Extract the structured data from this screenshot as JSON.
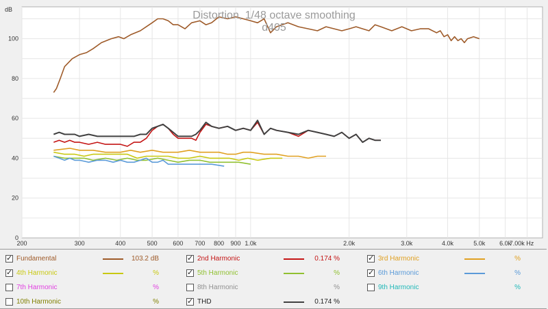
{
  "chart_data": {
    "type": "line",
    "title": "Distortion, 1/48 octave smoothing",
    "subtitle": "d405",
    "ylabel": "dB",
    "xunit": "Hz",
    "xscale": "log",
    "xlim": [
      200,
      7800
    ],
    "ylim": [
      0,
      116
    ],
    "grid": true,
    "yticks": [
      0,
      20,
      40,
      60,
      80,
      100
    ],
    "ytick_labels": [
      "0",
      "20",
      "40",
      "60",
      "80",
      "100"
    ],
    "xticks": [
      200,
      300,
      400,
      500,
      600,
      700,
      800,
      900,
      1000,
      2000,
      3000,
      4000,
      5000,
      6000,
      7000
    ],
    "xtick_labels": [
      "200",
      "300",
      "400",
      "500",
      "600",
      "700",
      "800",
      "900",
      "1.0k",
      "2.0k",
      "3.0k",
      "4.0k",
      "5.0k",
      "6.0k",
      "7.00k Hz"
    ],
    "series": [
      {
        "name": "Fundamental",
        "color": "#9e5a28",
        "x": [
          250,
          255,
          262,
          270,
          285,
          300,
          315,
          330,
          350,
          375,
          395,
          410,
          430,
          460,
          480,
          500,
          520,
          540,
          560,
          580,
          600,
          630,
          660,
          700,
          730,
          760,
          800,
          850,
          900,
          950,
          1000,
          1050,
          1100,
          1150,
          1200,
          1300,
          1400,
          1500,
          1600,
          1700,
          1800,
          1900,
          2000,
          2100,
          2200,
          2300,
          2400,
          2500,
          2700,
          2900,
          3100,
          3300,
          3500,
          3700,
          3800,
          3900,
          4000,
          4100,
          4200,
          4300,
          4400,
          4500,
          4600,
          4800,
          5000
        ],
        "y": [
          73,
          75,
          80,
          86,
          90,
          92,
          93,
          95,
          98,
          100,
          101,
          100,
          102,
          104,
          106,
          108,
          110,
          110,
          109,
          107,
          107,
          105,
          108,
          109,
          107,
          108,
          111,
          110,
          111,
          110,
          109,
          108,
          110,
          103,
          106,
          108,
          106,
          105,
          104,
          106,
          105,
          104,
          105,
          106,
          105,
          104,
          107,
          106,
          104,
          106,
          104,
          105,
          105,
          103,
          104,
          101,
          102,
          99,
          101,
          99,
          100,
          98,
          100,
          101,
          100
        ]
      },
      {
        "name": "2nd Harmonic",
        "color": "#c41414",
        "x": [
          250,
          260,
          270,
          280,
          290,
          300,
          320,
          340,
          360,
          380,
          400,
          420,
          440,
          460,
          480,
          500,
          520,
          540,
          560,
          580,
          600,
          630,
          660,
          680,
          700,
          730,
          760,
          800,
          850,
          900,
          950,
          1000,
          1050,
          1100,
          1150,
          1200,
          1300,
          1400,
          1500,
          1600,
          1700,
          1800,
          1900,
          2000,
          2100,
          2200,
          2300,
          2400,
          2500
        ],
        "y": [
          48,
          49,
          48,
          49,
          48,
          48,
          47,
          48,
          47,
          47,
          47,
          46,
          48,
          48,
          50,
          54,
          56,
          57,
          55,
          52,
          50,
          50,
          50,
          49,
          53,
          57,
          56,
          55,
          56,
          54,
          55,
          54,
          58,
          52,
          55,
          54,
          53,
          51,
          54,
          53,
          52,
          51,
          53,
          50,
          52,
          48,
          50,
          49,
          49
        ]
      },
      {
        "name": "3rd Harmonic",
        "color": "#e0a020",
        "x": [
          250,
          280,
          300,
          330,
          360,
          400,
          430,
          460,
          500,
          540,
          600,
          650,
          700,
          750,
          800,
          850,
          900,
          950,
          1000,
          1100,
          1200,
          1300,
          1400,
          1500,
          1600,
          1700
        ],
        "y": [
          44,
          45,
          44,
          44,
          43,
          43,
          44,
          43,
          44,
          43,
          43,
          44,
          43,
          43,
          43,
          42,
          42,
          43,
          43,
          42,
          42,
          41,
          41,
          40,
          41,
          41
        ]
      },
      {
        "name": "4th Harmonic",
        "color": "#c8c810",
        "x": [
          250,
          270,
          290,
          310,
          330,
          360,
          390,
          420,
          450,
          480,
          520,
          560,
          600,
          650,
          700,
          750,
          800,
          860,
          920,
          980,
          1050,
          1150,
          1250
        ],
        "y": [
          43,
          42,
          42,
          41,
          42,
          42,
          42,
          42,
          40,
          41,
          41,
          41,
          40,
          40,
          41,
          40,
          40,
          40,
          39,
          40,
          39,
          40,
          40
        ]
      },
      {
        "name": "5th Harmonic",
        "color": "#90c030",
        "x": [
          250,
          270,
          290,
          310,
          330,
          360,
          390,
          420,
          450,
          480,
          520,
          560,
          600,
          650,
          700,
          750,
          800,
          860,
          920,
          1000
        ],
        "y": [
          41,
          40,
          40,
          40,
          39,
          40,
          39,
          40,
          39,
          39,
          40,
          39,
          38,
          39,
          39,
          38,
          38,
          38,
          38,
          37
        ]
      },
      {
        "name": "6th Harmonic",
        "color": "#5a9ad8",
        "x": [
          250,
          260,
          270,
          280,
          290,
          300,
          320,
          340,
          360,
          380,
          400,
          420,
          440,
          460,
          480,
          500,
          520,
          540,
          560,
          600,
          640,
          700,
          760,
          830
        ],
        "y": [
          41,
          40,
          39,
          40,
          39,
          39,
          38,
          39,
          39,
          38,
          39,
          38,
          38,
          39,
          40,
          38,
          38,
          39,
          37,
          37,
          37,
          37,
          37,
          36
        ]
      },
      {
        "name": "THD",
        "color": "#404040",
        "x": [
          250,
          260,
          270,
          280,
          290,
          300,
          320,
          340,
          360,
          380,
          400,
          420,
          440,
          460,
          480,
          500,
          520,
          540,
          560,
          580,
          600,
          630,
          660,
          680,
          700,
          730,
          760,
          800,
          850,
          900,
          950,
          1000,
          1050,
          1100,
          1150,
          1200,
          1300,
          1400,
          1500,
          1600,
          1700,
          1800,
          1900,
          2000,
          2100,
          2200,
          2300,
          2400,
          2500
        ],
        "y": [
          52,
          53,
          52,
          52,
          52,
          51,
          52,
          51,
          51,
          51,
          51,
          51,
          51,
          52,
          52,
          55,
          56,
          57,
          55,
          53,
          51,
          51,
          51,
          52,
          54,
          58,
          56,
          55,
          56,
          54,
          55,
          54,
          59,
          52,
          55,
          54,
          53,
          52,
          54,
          53,
          52,
          51,
          53,
          50,
          52,
          48,
          50,
          49,
          49
        ]
      }
    ]
  },
  "legend": [
    {
      "label": "Fundamental",
      "checked": true,
      "value": "103.2 dB",
      "color": "#9e5a28"
    },
    {
      "label": "2nd Harmonic",
      "checked": true,
      "value": "0.174 %",
      "color": "#c41414"
    },
    {
      "label": "3rd Harmonic",
      "checked": true,
      "value": "%",
      "color": "#e0a020"
    },
    {
      "label": "4th Harmonic",
      "checked": true,
      "value": "%",
      "color": "#c8c810"
    },
    {
      "label": "5th Harmonic",
      "checked": true,
      "value": "%",
      "color": "#90c030"
    },
    {
      "label": "6th Harmonic",
      "checked": true,
      "value": "%",
      "color": "#5a9ad8"
    },
    {
      "label": "7th Harmonic",
      "checked": false,
      "value": "%",
      "color": "#e040e0"
    },
    {
      "label": "8th Harmonic",
      "checked": false,
      "value": "%",
      "color": "#909090"
    },
    {
      "label": "9th Harmonic",
      "checked": false,
      "value": "%",
      "color": "#20b8b8"
    },
    {
      "label": "10th Harmonic",
      "checked": false,
      "value": "%",
      "color": "#808000"
    },
    {
      "label": "THD",
      "checked": true,
      "value": "0.174 %",
      "color": "#404040"
    }
  ]
}
